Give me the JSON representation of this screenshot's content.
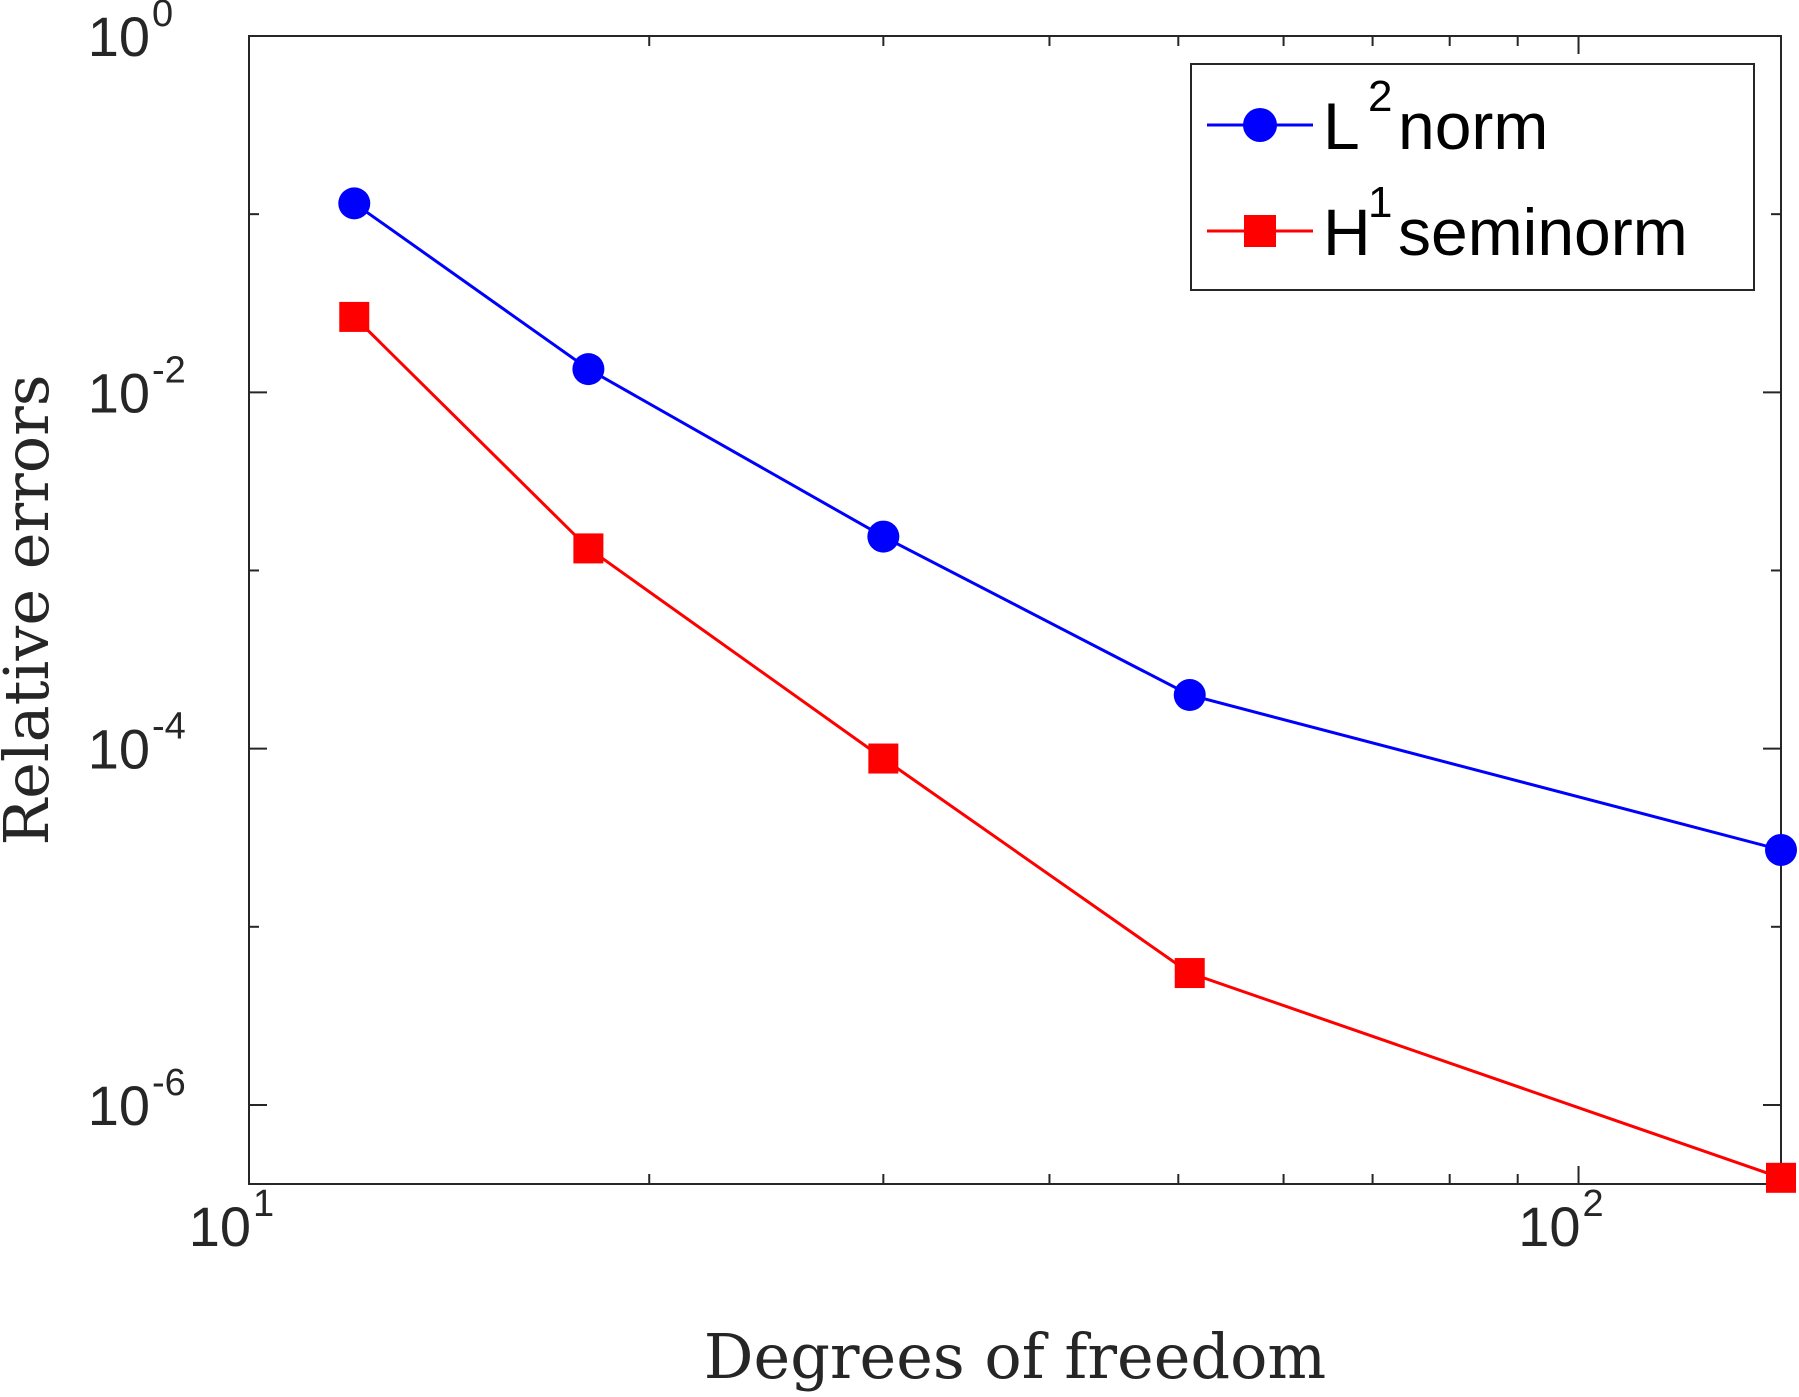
{
  "chart_data": {
    "type": "line",
    "xscale": "log",
    "yscale": "log",
    "xlim": [
      10,
      142
    ],
    "ylim": [
      3.6e-07,
      1
    ],
    "xlabel": "Degrees of freedom",
    "ylabel": "Relative errors",
    "x_ticks": [
      {
        "value": 10,
        "base": "10",
        "exp": "1"
      },
      {
        "value": 100,
        "base": "10",
        "exp": "2"
      }
    ],
    "y_ticks": [
      {
        "value": 1,
        "base": "10",
        "exp": "0"
      },
      {
        "value": 0.01,
        "base": "10",
        "exp": "-2"
      },
      {
        "value": 0.0001,
        "base": "10",
        "exp": "-4"
      },
      {
        "value": 1e-06,
        "base": "10",
        "exp": "-6"
      }
    ],
    "legend_position": "top-right",
    "series": [
      {
        "name": "L",
        "name_sup": "2",
        "name_rest": " norm",
        "color": "#0000ff",
        "marker": "circle",
        "x": [
          12,
          18,
          30,
          51,
          142
        ],
        "y": [
          0.115,
          0.0135,
          0.00155,
          0.0002,
          2.7e-05
        ]
      },
      {
        "name": "H",
        "name_sup": "1",
        "name_rest": " seminorm",
        "color": "#ff0000",
        "marker": "square",
        "x": [
          12,
          18,
          30,
          51,
          142
        ],
        "y": [
          0.0265,
          0.00133,
          8.8e-05,
          5.5e-06,
          3.9e-07
        ]
      }
    ]
  }
}
